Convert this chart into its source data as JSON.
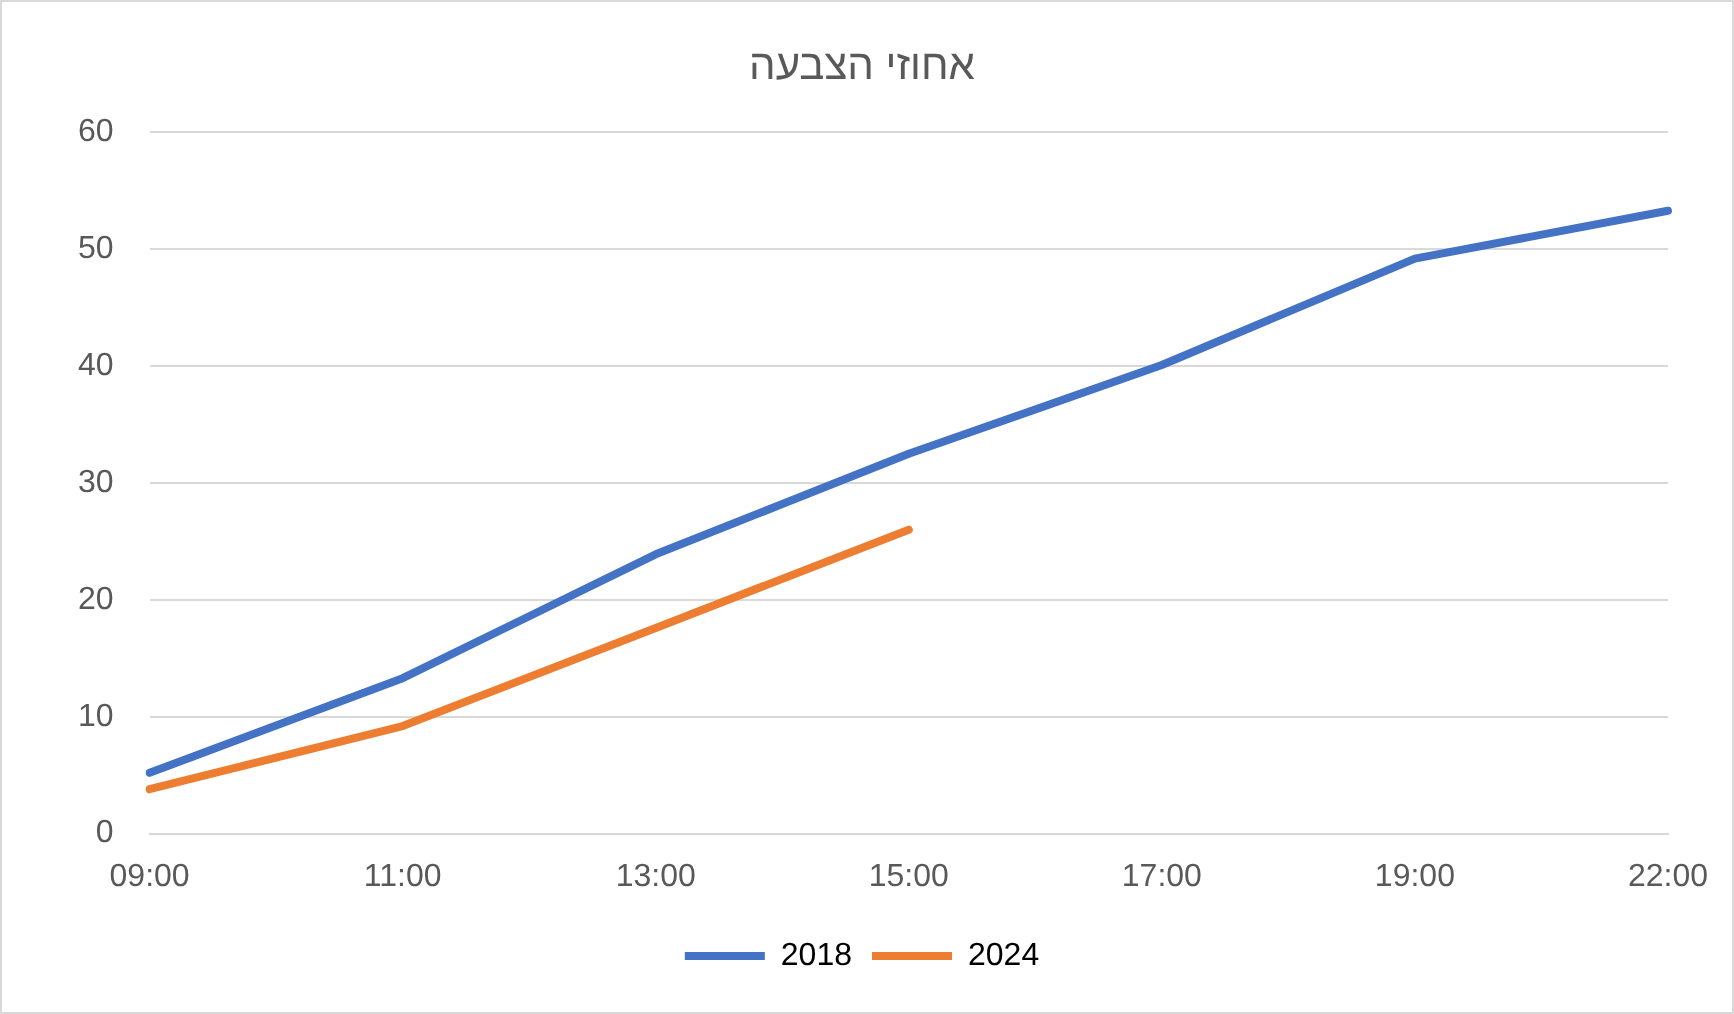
{
  "chart_data": {
    "type": "line",
    "title": "אחוזי הצבעה",
    "categories": [
      "09:00",
      "11:00",
      "13:00",
      "15:00",
      "17:00",
      "19:00",
      "22:00"
    ],
    "series": [
      {
        "name": "2018",
        "color": "#4472c4",
        "values": [
          5.2,
          13.3,
          23.9,
          32.5,
          40.1,
          49.2,
          53.3
        ]
      },
      {
        "name": "2024",
        "color": "#ed7d31",
        "values": [
          3.8,
          9.2,
          17.6,
          26.0,
          null,
          null,
          null
        ]
      }
    ],
    "ylim": [
      0,
      60
    ],
    "yticks": [
      0,
      10,
      20,
      30,
      40,
      50,
      60
    ],
    "grid": "y",
    "legend": "bottom",
    "marker": "none",
    "line_style": "solid"
  }
}
